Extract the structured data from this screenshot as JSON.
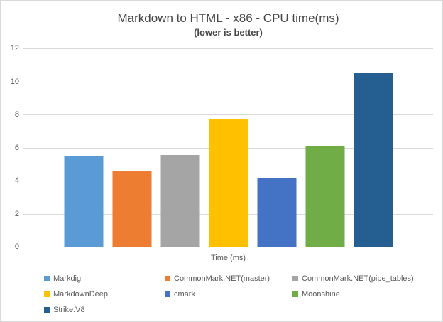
{
  "chart_data": {
    "type": "bar",
    "title": "Markdown to HTML - x86 - CPU time(ms)",
    "subtitle": "(lower is better)",
    "xlabel": "Time (ms)",
    "ylabel": "",
    "ylim": [
      0,
      12
    ],
    "yticks": [
      0,
      2,
      4,
      6,
      8,
      10,
      12
    ],
    "grid": true,
    "legend_position": "bottom",
    "categories": [
      "Markdig",
      "CommonMark.NET(master)",
      "CommonMark.NET(pipe_tables)",
      "MarkdownDeep",
      "cmark",
      "Moonshine",
      "Strike.V8"
    ],
    "series": [
      {
        "name": "Markdig",
        "value": 5.5,
        "color": "#5B9BD5"
      },
      {
        "name": "CommonMark.NET(master)",
        "value": 4.65,
        "color": "#ED7D31"
      },
      {
        "name": "CommonMark.NET(pipe_tables)",
        "value": 5.6,
        "color": "#A5A5A5"
      },
      {
        "name": "MarkdownDeep",
        "value": 7.8,
        "color": "#FFC000"
      },
      {
        "name": "cmark",
        "value": 4.2,
        "color": "#4472C4"
      },
      {
        "name": "Moonshine",
        "value": 6.1,
        "color": "#70AD47"
      },
      {
        "name": "Strike.V8",
        "value": 10.6,
        "color": "#255E91"
      }
    ]
  },
  "colors": {
    "background": "#FFFFFF",
    "border": "#D9D9D9",
    "gridline": "#D9D9D9",
    "axis_line": "#D6D6D6",
    "title_text": "#454545",
    "axis_text": "#595959",
    "legend_text": "#595959"
  }
}
